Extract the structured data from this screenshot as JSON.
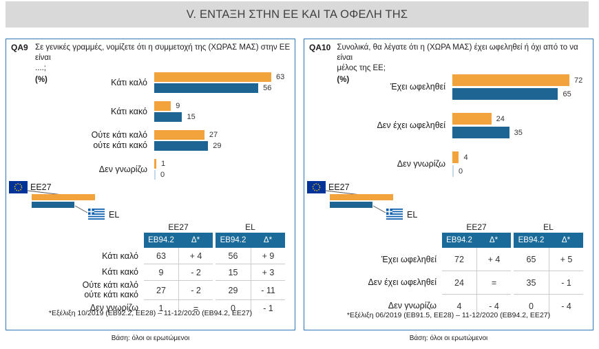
{
  "title": "V. ΕΝΤΑΞΗ ΣΤΗΝ ΕΕ ΚΑΙ ΤΑ ΟΦΕΛΗ ΤΗΣ",
  "colors": {
    "eu_bar": "#f2a33c",
    "el_bar": "#1e6594",
    "zero_bar": "#c3d9ea",
    "table_header_bg": "#1a6a9a",
    "panel_border": "#2e75b6",
    "title_bg": "#d9d9d9"
  },
  "legend": {
    "eu": "EE27",
    "el": "EL"
  },
  "chart_data": [
    {
      "type": "bar",
      "orientation": "horizontal",
      "panel": "QA9",
      "title": "Σε γενικές γραμμές, νομίζετε ότι η συμμετοχή της (ΧΩΡΑΣ ΜΑΣ) στην ΕΕ είναι ....; (%)",
      "categories": [
        "Κάτι καλό",
        "Κάτι κακό",
        "Ούτε κάτι καλό\nούτε κάτι κακό",
        "Δεν γνωρίζω"
      ],
      "series": [
        {
          "name": "EE27",
          "values": [
            63,
            9,
            27,
            1
          ]
        },
        {
          "name": "EL",
          "values": [
            56,
            15,
            29,
            0
          ]
        }
      ],
      "xlim": [
        0,
        100
      ],
      "value_labels": true,
      "legend_position": "bottom-left",
      "grid": false
    },
    {
      "type": "bar",
      "orientation": "horizontal",
      "panel": "QA10",
      "title": "Συνολικά, θα λέγατε ότι η (ΧΩΡΑ ΜΑΣ) έχει ωφεληθεί ή όχι από το να είναι μέλος της ΕΕ; (%)",
      "categories": [
        "Έχει ωφεληθεί",
        "Δεν έχει ωφεληθεί",
        "Δεν γνωρίζω"
      ],
      "series": [
        {
          "name": "EE27",
          "values": [
            72,
            24,
            4
          ]
        },
        {
          "name": "EL",
          "values": [
            65,
            35,
            0
          ]
        }
      ],
      "xlim": [
        0,
        100
      ],
      "value_labels": true,
      "legend_position": "bottom-left",
      "grid": false
    }
  ],
  "panels": [
    {
      "code": "QA9",
      "question": "Σε γενικές γραμμές, νομίζετε ότι η συμμετοχή της (ΧΩΡΑΣ ΜΑΣ) στην ΕΕ είναι\n....;",
      "unit": "(%)",
      "table": {
        "groups": [
          "EE27",
          "EL"
        ],
        "cols": [
          "EB94.2",
          "Δ*",
          "EB94.2",
          "Δ*"
        ],
        "rows": [
          {
            "label": "Κάτι καλό",
            "values": [
              "63",
              "+ 4",
              "56",
              "+ 9"
            ]
          },
          {
            "label": "Κάτι κακό",
            "values": [
              "9",
              "- 2",
              "15",
              "+ 3"
            ]
          },
          {
            "label": "Ούτε κάτι καλό\nούτε κάτι κακό",
            "values": [
              "27",
              "- 2",
              "29",
              "- 11"
            ]
          },
          {
            "label": "Δεν γνωρίζω",
            "values": [
              "1",
              "=",
              "0",
              "- 1"
            ]
          }
        ]
      },
      "footnote": "*Εξέλιξη 10/2019 (EB92.2, EE28) – 11-12/2020 (EB94.2, EE27)",
      "base": "Βάση: όλοι οι ερωτώμενοι"
    },
    {
      "code": "QA10",
      "question": "Συνολικά, θα λέγατε ότι η (ΧΩΡΑ ΜΑΣ) έχει ωφεληθεί ή όχι από το να είναι\nμέλος της ΕΕ;",
      "unit": "(%)",
      "table": {
        "groups": [
          "EE27",
          "EL"
        ],
        "cols": [
          "EB94.2",
          "Δ*",
          "EB94.2",
          "Δ*"
        ],
        "rows": [
          {
            "label": "Έχει ωφεληθεί",
            "values": [
              "72",
              "+ 4",
              "65",
              "+ 5"
            ]
          },
          {
            "label": "Δεν έχει ωφεληθεί",
            "values": [
              "24",
              "=",
              "35",
              "- 1"
            ]
          },
          {
            "label": "Δεν γνωρίζω",
            "values": [
              "4",
              "- 4",
              "0",
              "- 4"
            ]
          }
        ]
      },
      "footnote": "*Εξέλιξη 06/2019 (EB91.5, EE28) – 11-12/2020 (EB94.2, EE27)",
      "base": "Βάση: όλοι οι ερωτώμενοι"
    }
  ]
}
